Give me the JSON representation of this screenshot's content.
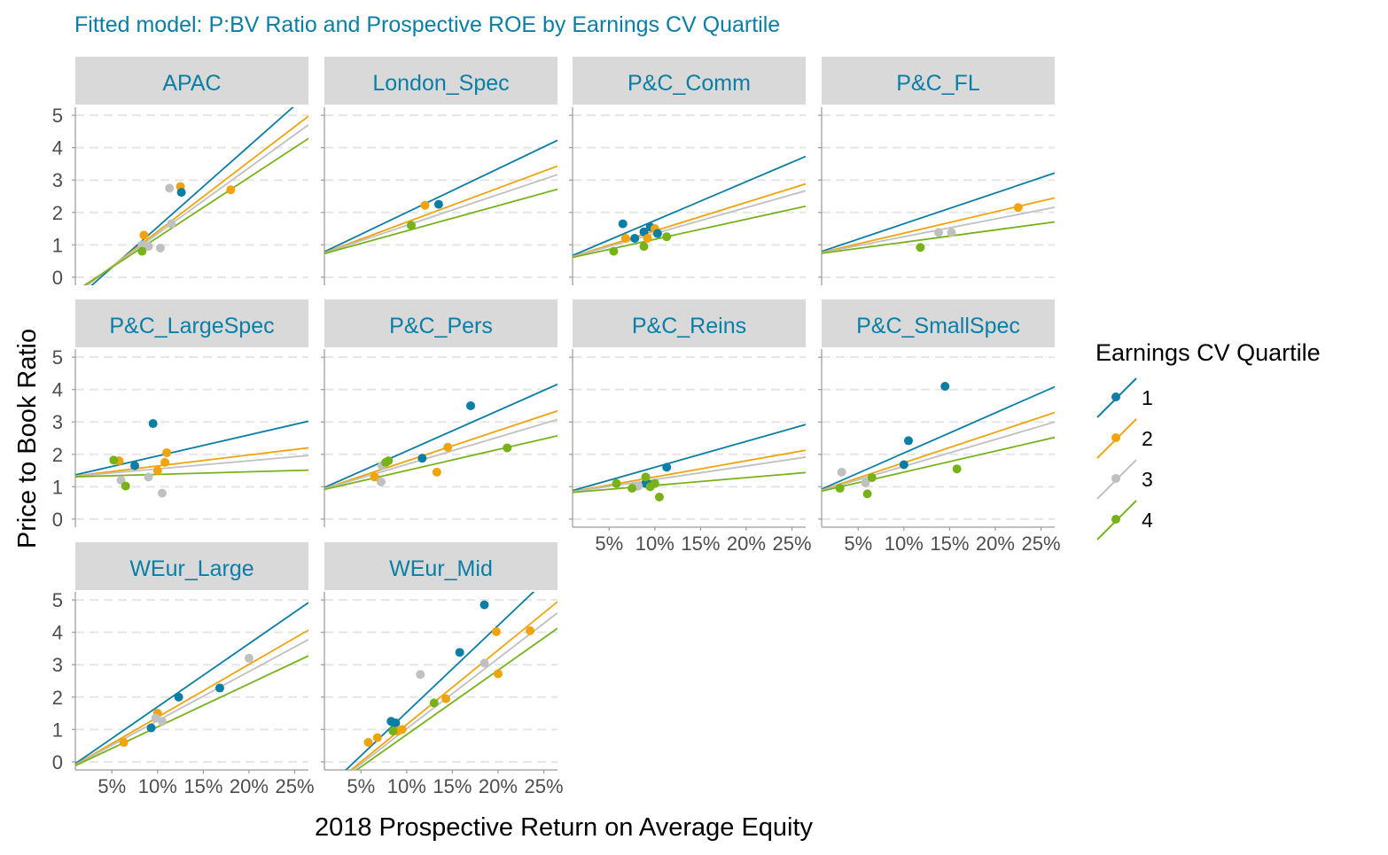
{
  "chart_data": {
    "type": "scatter",
    "title": "Fitted model: P:BV Ratio and Prospective ROE by Earnings CV Quartile",
    "xlabel": "2018 Prospective Return on Average Equity",
    "ylabel": "Price to Book Ratio",
    "xlim": [
      0.01,
      0.265
    ],
    "ylim": [
      -0.25,
      5.25
    ],
    "x_ticks": [
      0.05,
      0.1,
      0.15,
      0.2,
      0.25
    ],
    "x_tick_labels": [
      "5%",
      "10%",
      "15%",
      "20%",
      "25%"
    ],
    "y_ticks": [
      0,
      1,
      2,
      3,
      4,
      5
    ],
    "y_tick_labels": [
      "0",
      "1",
      "2",
      "3",
      "4",
      "5"
    ],
    "grid": "horizontal dashed major",
    "legend": {
      "title": "Earnings CV Quartile",
      "position": "right",
      "entries": [
        "1",
        "2",
        "3",
        "4"
      ]
    },
    "colors": {
      "1": "#0a7ea4",
      "2": "#f0a30a",
      "3": "#c0c0c0",
      "4": "#78b21a",
      "strip_bg": "#d9d9d9",
      "strip_text": "#0a7ea4",
      "title": "#0a7ea4",
      "grid": "#e5e5e5",
      "axis_text": "#4d4d4d"
    },
    "facets": [
      {
        "name": "APAC",
        "lines": [
          {
            "quartile": "1",
            "intercept": -0.95,
            "slope": 25.0
          },
          {
            "quartile": "2",
            "intercept": -0.75,
            "slope": 21.6
          },
          {
            "quartile": "3",
            "intercept": -0.7,
            "slope": 20.4
          },
          {
            "quartile": "4",
            "intercept": -0.62,
            "slope": 18.5
          }
        ],
        "points": [
          {
            "x": 0.085,
            "y": 1.3,
            "q": "2"
          },
          {
            "x": 0.113,
            "y": 2.75,
            "q": "3"
          },
          {
            "x": 0.125,
            "y": 2.8,
            "q": "2"
          },
          {
            "x": 0.126,
            "y": 2.62,
            "q": "1"
          },
          {
            "x": 0.18,
            "y": 2.7,
            "q": "2"
          },
          {
            "x": 0.083,
            "y": 1.0,
            "q": "3"
          },
          {
            "x": 0.09,
            "y": 0.95,
            "q": "3"
          },
          {
            "x": 0.103,
            "y": 0.9,
            "q": "3"
          },
          {
            "x": 0.115,
            "y": 1.65,
            "q": "3"
          },
          {
            "x": 0.083,
            "y": 0.8,
            "q": "4"
          }
        ]
      },
      {
        "name": "London_Spec",
        "lines": [
          {
            "quartile": "1",
            "intercept": 0.65,
            "slope": 13.5
          },
          {
            "quartile": "2",
            "intercept": 0.65,
            "slope": 10.5
          },
          {
            "quartile": "3",
            "intercept": 0.65,
            "slope": 9.5
          },
          {
            "quartile": "4",
            "intercept": 0.65,
            "slope": 7.8
          }
        ],
        "points": [
          {
            "x": 0.12,
            "y": 2.22,
            "q": "2"
          },
          {
            "x": 0.135,
            "y": 2.25,
            "q": "1"
          },
          {
            "x": 0.105,
            "y": 1.6,
            "q": "4"
          }
        ]
      },
      {
        "name": "P&C_Comm",
        "lines": [
          {
            "quartile": "1",
            "intercept": 0.55,
            "slope": 12.0
          },
          {
            "quartile": "2",
            "intercept": 0.55,
            "slope": 8.8
          },
          {
            "quartile": "3",
            "intercept": 0.55,
            "slope": 8.0
          },
          {
            "quartile": "4",
            "intercept": 0.55,
            "slope": 6.2
          }
        ],
        "points": [
          {
            "x": 0.065,
            "y": 1.65,
            "q": "1"
          },
          {
            "x": 0.068,
            "y": 1.2,
            "q": "2"
          },
          {
            "x": 0.078,
            "y": 1.2,
            "q": "1"
          },
          {
            "x": 0.088,
            "y": 1.4,
            "q": "1"
          },
          {
            "x": 0.092,
            "y": 1.2,
            "q": "2"
          },
          {
            "x": 0.095,
            "y": 1.55,
            "q": "1"
          },
          {
            "x": 0.1,
            "y": 1.5,
            "q": "2"
          },
          {
            "x": 0.103,
            "y": 1.35,
            "q": "1"
          },
          {
            "x": 0.055,
            "y": 0.8,
            "q": "4"
          },
          {
            "x": 0.088,
            "y": 0.95,
            "q": "4"
          },
          {
            "x": 0.113,
            "y": 1.25,
            "q": "4"
          }
        ]
      },
      {
        "name": "P&C_FL",
        "lines": [
          {
            "quartile": "1",
            "intercept": 0.7,
            "slope": 9.5
          },
          {
            "quartile": "2",
            "intercept": 0.7,
            "slope": 6.6
          },
          {
            "quartile": "3",
            "intercept": 0.7,
            "slope": 5.5
          },
          {
            "quartile": "4",
            "intercept": 0.7,
            "slope": 3.8
          }
        ],
        "points": [
          {
            "x": 0.225,
            "y": 2.15,
            "q": "2"
          },
          {
            "x": 0.138,
            "y": 1.38,
            "q": "3"
          },
          {
            "x": 0.152,
            "y": 1.38,
            "q": "3"
          },
          {
            "x": 0.118,
            "y": 0.92,
            "q": "4"
          }
        ]
      },
      {
        "name": "P&C_LargeSpec",
        "lines": [
          {
            "quartile": "1",
            "intercept": 1.3,
            "slope": 6.5
          },
          {
            "quartile": "2",
            "intercept": 1.3,
            "slope": 3.4
          },
          {
            "quartile": "3",
            "intercept": 1.3,
            "slope": 2.5
          },
          {
            "quartile": "4",
            "intercept": 1.3,
            "slope": 0.8
          }
        ],
        "points": [
          {
            "x": 0.095,
            "y": 2.95,
            "q": "1"
          },
          {
            "x": 0.075,
            "y": 1.65,
            "q": "1"
          },
          {
            "x": 0.058,
            "y": 1.8,
            "q": "2"
          },
          {
            "x": 0.1,
            "y": 1.5,
            "q": "2"
          },
          {
            "x": 0.108,
            "y": 1.75,
            "q": "2"
          },
          {
            "x": 0.11,
            "y": 2.05,
            "q": "2"
          },
          {
            "x": 0.06,
            "y": 1.2,
            "q": "3"
          },
          {
            "x": 0.09,
            "y": 1.3,
            "q": "3"
          },
          {
            "x": 0.105,
            "y": 0.8,
            "q": "3"
          },
          {
            "x": 0.052,
            "y": 1.82,
            "q": "4"
          },
          {
            "x": 0.065,
            "y": 1.02,
            "q": "4"
          }
        ]
      },
      {
        "name": "P&C_Pers",
        "lines": [
          {
            "quartile": "1",
            "intercept": 0.85,
            "slope": 12.5
          },
          {
            "quartile": "2",
            "intercept": 0.85,
            "slope": 9.4
          },
          {
            "quartile": "3",
            "intercept": 0.85,
            "slope": 8.4
          },
          {
            "quartile": "4",
            "intercept": 0.85,
            "slope": 6.5
          }
        ],
        "points": [
          {
            "x": 0.17,
            "y": 3.5,
            "q": "1"
          },
          {
            "x": 0.117,
            "y": 1.88,
            "q": "1"
          },
          {
            "x": 0.065,
            "y": 1.3,
            "q": "2"
          },
          {
            "x": 0.133,
            "y": 1.45,
            "q": "2"
          },
          {
            "x": 0.145,
            "y": 2.22,
            "q": "2"
          },
          {
            "x": 0.072,
            "y": 1.15,
            "q": "3"
          },
          {
            "x": 0.073,
            "y": 1.65,
            "q": "3"
          },
          {
            "x": 0.077,
            "y": 1.75,
            "q": "4"
          },
          {
            "x": 0.08,
            "y": 1.8,
            "q": "4"
          },
          {
            "x": 0.21,
            "y": 2.2,
            "q": "4"
          }
        ]
      },
      {
        "name": "P&C_Reins",
        "lines": [
          {
            "quartile": "1",
            "intercept": 0.8,
            "slope": 8.0
          },
          {
            "quartile": "2",
            "intercept": 0.8,
            "slope": 5.0
          },
          {
            "quartile": "3",
            "intercept": 0.8,
            "slope": 4.2
          },
          {
            "quartile": "4",
            "intercept": 0.8,
            "slope": 2.4
          }
        ],
        "points": [
          {
            "x": 0.113,
            "y": 1.6,
            "q": "1"
          },
          {
            "x": 0.09,
            "y": 1.1,
            "q": "1"
          },
          {
            "x": 0.093,
            "y": 1.08,
            "q": "1"
          },
          {
            "x": 0.078,
            "y": 1.0,
            "q": "3"
          },
          {
            "x": 0.082,
            "y": 1.02,
            "q": "3"
          },
          {
            "x": 0.058,
            "y": 1.1,
            "q": "4"
          },
          {
            "x": 0.075,
            "y": 0.95,
            "q": "4"
          },
          {
            "x": 0.09,
            "y": 1.3,
            "q": "4"
          },
          {
            "x": 0.095,
            "y": 1.0,
            "q": "4"
          },
          {
            "x": 0.1,
            "y": 1.1,
            "q": "4"
          },
          {
            "x": 0.105,
            "y": 0.68,
            "q": "4"
          }
        ]
      },
      {
        "name": "P&C_SmallSpec",
        "lines": [
          {
            "quartile": "1",
            "intercept": 0.8,
            "slope": 12.4
          },
          {
            "quartile": "2",
            "intercept": 0.8,
            "slope": 9.4
          },
          {
            "quartile": "3",
            "intercept": 0.8,
            "slope": 8.3
          },
          {
            "quartile": "4",
            "intercept": 0.8,
            "slope": 6.5
          }
        ],
        "points": [
          {
            "x": 0.145,
            "y": 4.1,
            "q": "1"
          },
          {
            "x": 0.105,
            "y": 2.42,
            "q": "1"
          },
          {
            "x": 0.1,
            "y": 1.68,
            "q": "1"
          },
          {
            "x": 0.032,
            "y": 1.45,
            "q": "3"
          },
          {
            "x": 0.058,
            "y": 1.12,
            "q": "3"
          },
          {
            "x": 0.03,
            "y": 0.95,
            "q": "4"
          },
          {
            "x": 0.06,
            "y": 0.78,
            "q": "4"
          },
          {
            "x": 0.065,
            "y": 1.28,
            "q": "4"
          },
          {
            "x": 0.158,
            "y": 1.55,
            "q": "4"
          }
        ]
      },
      {
        "name": "WEur_Large",
        "lines": [
          {
            "quartile": "1",
            "intercept": -0.25,
            "slope": 19.5
          },
          {
            "quartile": "2",
            "intercept": -0.25,
            "slope": 16.3
          },
          {
            "quartile": "3",
            "intercept": -0.25,
            "slope": 15.2
          },
          {
            "quartile": "4",
            "intercept": -0.25,
            "slope": 13.3
          }
        ],
        "points": [
          {
            "x": 0.123,
            "y": 2.0,
            "q": "1"
          },
          {
            "x": 0.168,
            "y": 2.28,
            "q": "1"
          },
          {
            "x": 0.093,
            "y": 1.05,
            "q": "1"
          },
          {
            "x": 0.1,
            "y": 1.5,
            "q": "2"
          },
          {
            "x": 0.063,
            "y": 0.6,
            "q": "2"
          },
          {
            "x": 0.2,
            "y": 3.2,
            "q": "3"
          },
          {
            "x": 0.105,
            "y": 1.25,
            "q": "3"
          },
          {
            "x": 0.098,
            "y": 1.35,
            "q": "3"
          }
        ]
      },
      {
        "name": "WEur_Mid",
        "lines": [
          {
            "quartile": "1",
            "intercept": -1.15,
            "slope": 26.8
          },
          {
            "quartile": "2",
            "intercept": -1.15,
            "slope": 23.0
          },
          {
            "quartile": "3",
            "intercept": -1.15,
            "slope": 21.7
          },
          {
            "quartile": "4",
            "intercept": -1.15,
            "slope": 19.9
          }
        ],
        "points": [
          {
            "x": 0.185,
            "y": 4.85,
            "q": "1"
          },
          {
            "x": 0.158,
            "y": 3.38,
            "q": "1"
          },
          {
            "x": 0.083,
            "y": 1.25,
            "q": "1"
          },
          {
            "x": 0.088,
            "y": 1.2,
            "q": "1"
          },
          {
            "x": 0.198,
            "y": 4.02,
            "q": "2"
          },
          {
            "x": 0.235,
            "y": 4.05,
            "q": "2"
          },
          {
            "x": 0.2,
            "y": 2.72,
            "q": "2"
          },
          {
            "x": 0.143,
            "y": 1.95,
            "q": "2"
          },
          {
            "x": 0.058,
            "y": 0.6,
            "q": "2"
          },
          {
            "x": 0.068,
            "y": 0.75,
            "q": "2"
          },
          {
            "x": 0.09,
            "y": 0.95,
            "q": "2"
          },
          {
            "x": 0.095,
            "y": 1.0,
            "q": "2"
          },
          {
            "x": 0.115,
            "y": 2.7,
            "q": "3"
          },
          {
            "x": 0.185,
            "y": 3.05,
            "q": "3"
          },
          {
            "x": 0.13,
            "y": 1.82,
            "q": "4"
          },
          {
            "x": 0.085,
            "y": 0.95,
            "q": "4"
          }
        ]
      }
    ]
  }
}
